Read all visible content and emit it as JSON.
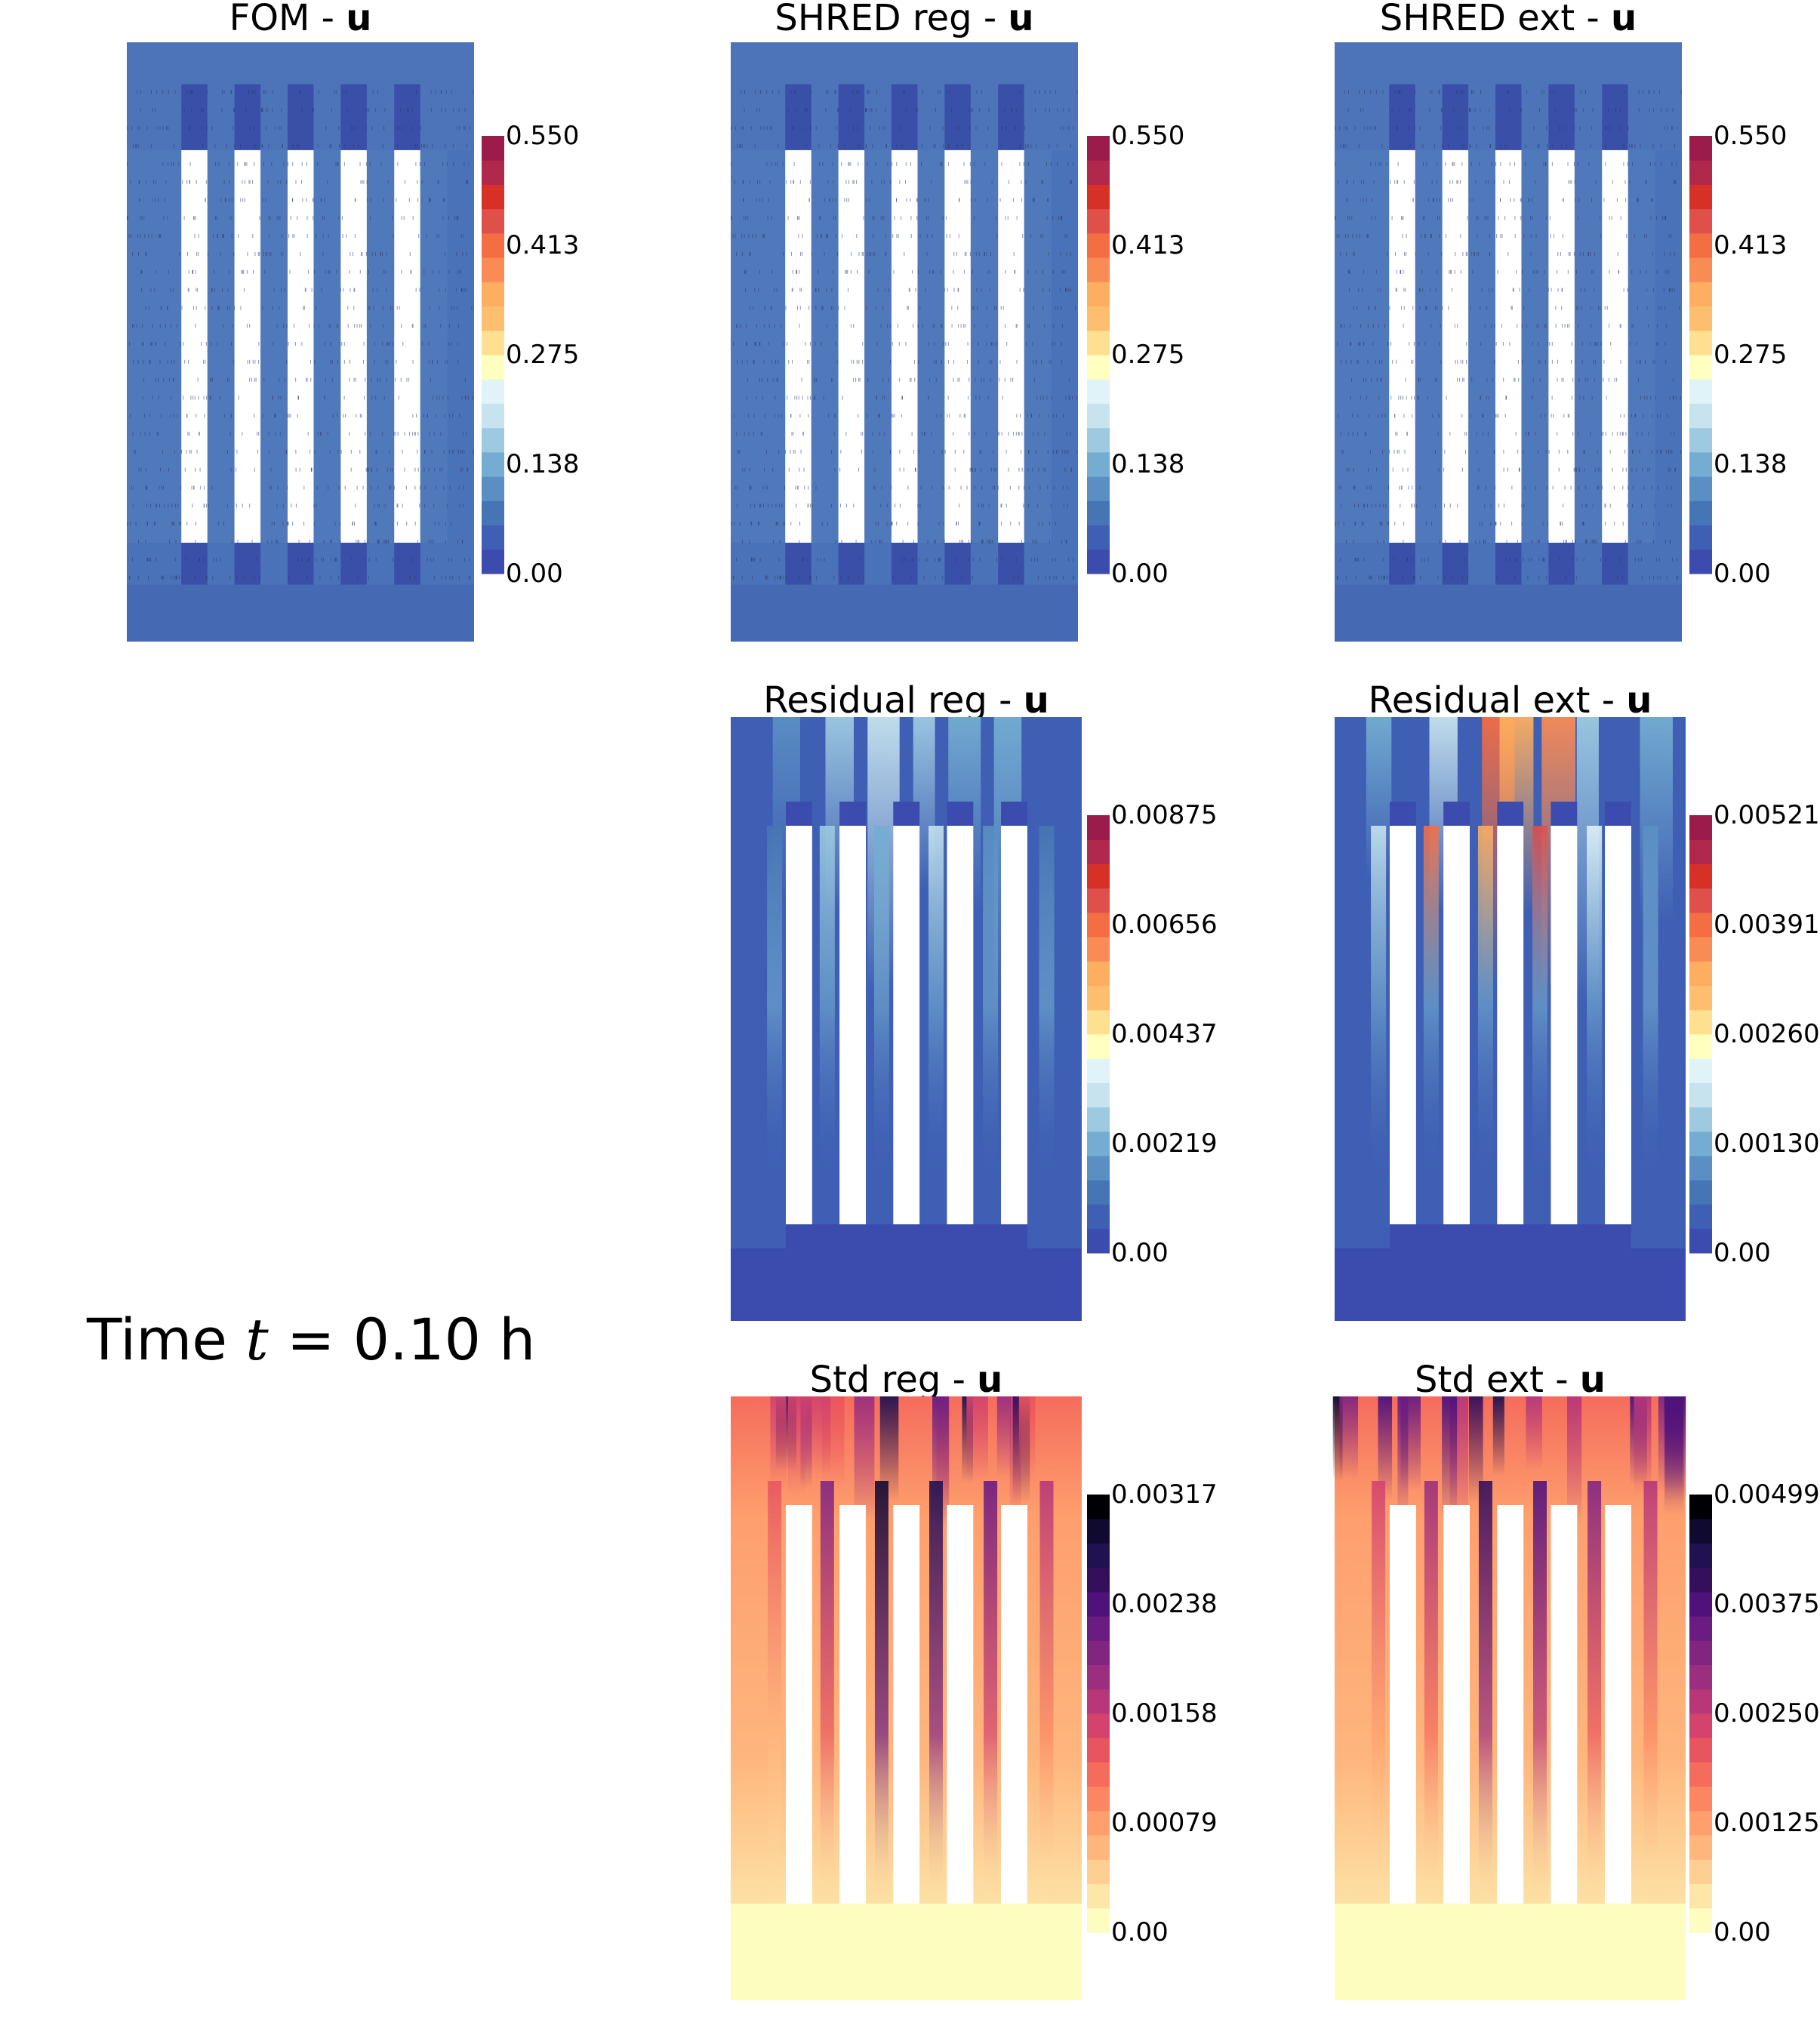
{
  "figure": {
    "time_label": {
      "prefix": "Time ",
      "symbol": "t",
      "equals": " = ",
      "value": "0.10 h"
    },
    "panels": [
      {
        "id": "fom",
        "title": "FOM - ",
        "variable": "u",
        "colormap": "spectral",
        "colorbar_ticks": [
          "0.550",
          "0.413",
          "0.275",
          "0.138",
          "0.00"
        ],
        "field": "velocity"
      },
      {
        "id": "shred-reg",
        "title": "SHRED reg - ",
        "variable": "u",
        "colormap": "spectral",
        "colorbar_ticks": [
          "0.550",
          "0.413",
          "0.275",
          "0.138",
          "0.00"
        ],
        "field": "velocity"
      },
      {
        "id": "shred-ext",
        "title": "SHRED ext - ",
        "variable": "u",
        "colormap": "spectral",
        "colorbar_ticks": [
          "0.550",
          "0.413",
          "0.275",
          "0.138",
          "0.00"
        ],
        "field": "velocity"
      },
      {
        "id": "residual-reg",
        "title": "Residual reg - ",
        "variable": "u",
        "colormap": "spectral",
        "colorbar_ticks": [
          "0.00875",
          "0.00656",
          "0.00437",
          "0.00219",
          "0.00"
        ],
        "field": "residual-low"
      },
      {
        "id": "residual-ext",
        "title": "Residual ext - ",
        "variable": "u",
        "colormap": "spectral",
        "colorbar_ticks": [
          "0.00521",
          "0.00391",
          "0.00260",
          "0.00130",
          "0.00"
        ],
        "field": "residual-high"
      },
      {
        "id": "std-reg",
        "title": "Std reg - ",
        "variable": "u",
        "colormap": "magma-reversed",
        "colorbar_ticks": [
          "0.00317",
          "0.00238",
          "0.00158",
          "0.00079",
          "0.00"
        ],
        "field": "std-reg"
      },
      {
        "id": "std-ext",
        "title": "Std ext - ",
        "variable": "u",
        "colormap": "magma-reversed",
        "colorbar_ticks": [
          "0.00499",
          "0.00375",
          "0.00250",
          "0.00125",
          "0.00"
        ],
        "field": "std-ext"
      }
    ]
  }
}
